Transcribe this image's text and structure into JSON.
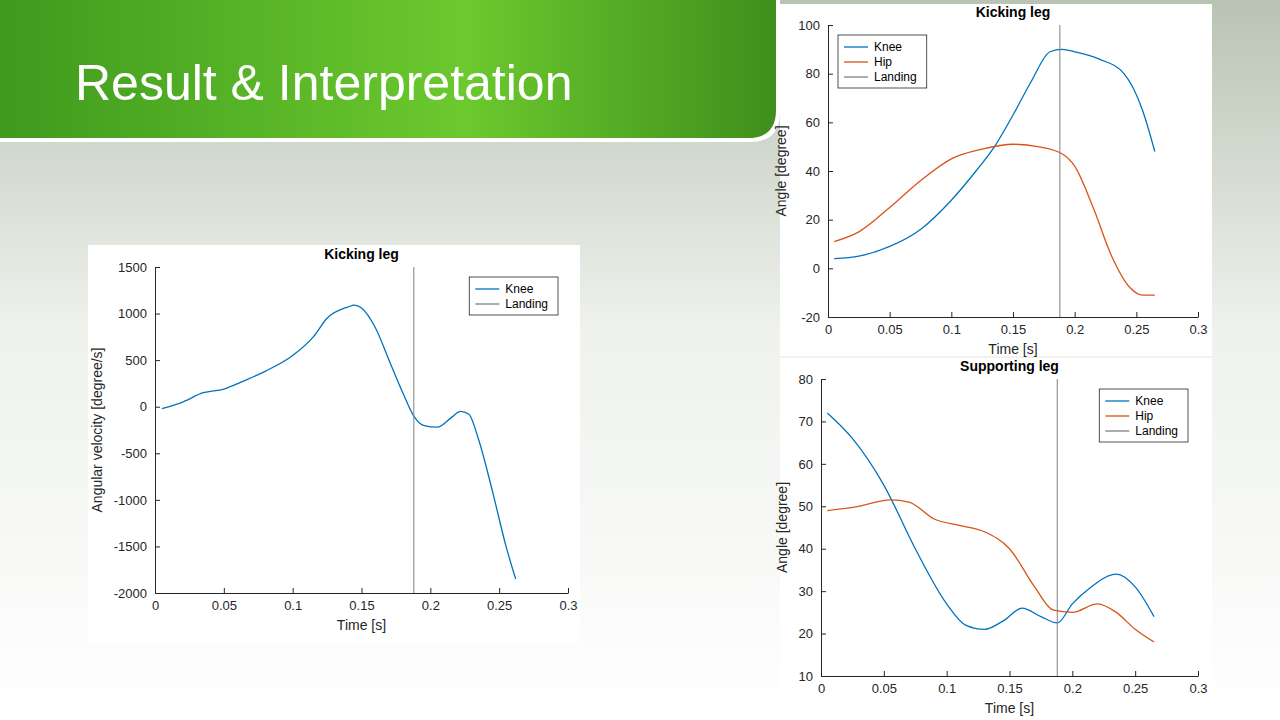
{
  "slide": {
    "title": "Result & Interpretation"
  },
  "chart_data": [
    {
      "type": "line",
      "title": "Kicking leg",
      "x_label": "Time [s]",
      "y_label": "Angular velocity [degree/s]",
      "xlim": [
        0,
        0.3
      ],
      "xticks": [
        0,
        0.05,
        0.1,
        0.15,
        0.2,
        0.25,
        0.3
      ],
      "ylim": [
        -2000,
        1500
      ],
      "yticks": [
        -2000,
        -1500,
        -1000,
        -500,
        0,
        500,
        1000,
        1500
      ],
      "grid": false,
      "legend": "northeast",
      "series": [
        {
          "name": "Knee",
          "color": "#0072bd",
          "x": [
            0.005,
            0.02,
            0.035,
            0.05,
            0.065,
            0.08,
            0.1,
            0.115,
            0.125,
            0.14,
            0.145,
            0.15,
            0.16,
            0.17,
            0.18,
            0.188,
            0.195,
            0.205,
            0.215,
            0.222,
            0.228,
            0.235,
            0.245,
            0.255,
            0.262
          ],
          "values": [
            -20,
            50,
            150,
            190,
            280,
            380,
            550,
            750,
            950,
            1070,
            1090,
            1060,
            850,
            500,
            150,
            -100,
            -200,
            -220,
            -120,
            -50,
            -80,
            -350,
            -900,
            -1500,
            -1850
          ]
        },
        {
          "name": "Landing",
          "color": "#808080",
          "x": [
            0.188,
            0.188
          ],
          "values": [
            -2000,
            1500
          ]
        }
      ]
    },
    {
      "type": "line",
      "title": "Kicking leg",
      "x_label": "Time [s]",
      "y_label": "Angle [degree]",
      "xlim": [
        0,
        0.3
      ],
      "xticks": [
        0,
        0.05,
        0.1,
        0.15,
        0.2,
        0.25,
        0.3
      ],
      "ylim": [
        -20,
        100
      ],
      "yticks": [
        -20,
        0,
        20,
        40,
        60,
        80,
        100
      ],
      "grid": false,
      "legend": "northwest",
      "series": [
        {
          "name": "Knee",
          "color": "#0072bd",
          "x": [
            0.005,
            0.025,
            0.05,
            0.075,
            0.1,
            0.12,
            0.135,
            0.15,
            0.165,
            0.18,
            0.19,
            0.2,
            0.22,
            0.24,
            0.255,
            0.265
          ],
          "values": [
            4,
            5,
            9,
            16,
            28,
            40,
            50,
            63,
            77,
            89,
            90,
            89,
            86,
            80,
            65,
            48
          ]
        },
        {
          "name": "Hip",
          "color": "#d95319",
          "x": [
            0.005,
            0.025,
            0.05,
            0.075,
            0.1,
            0.125,
            0.15,
            0.17,
            0.19,
            0.2,
            0.215,
            0.23,
            0.245,
            0.255,
            0.265
          ],
          "values": [
            11,
            15,
            25,
            36,
            45,
            49,
            51,
            50,
            47,
            42,
            25,
            5,
            -8,
            -11,
            -11
          ]
        },
        {
          "name": "Landing",
          "color": "#808080",
          "x": [
            0.188,
            0.188
          ],
          "values": [
            -20,
            100
          ]
        }
      ]
    },
    {
      "type": "line",
      "title": "Supporting leg",
      "x_label": "Time [s]",
      "y_label": "Angle [degree]",
      "xlim": [
        0,
        0.3
      ],
      "xticks": [
        0,
        0.05,
        0.1,
        0.15,
        0.2,
        0.25,
        0.3
      ],
      "ylim": [
        10,
        80
      ],
      "yticks": [
        10,
        20,
        30,
        40,
        50,
        60,
        70,
        80
      ],
      "grid": false,
      "legend": "northeast",
      "series": [
        {
          "name": "Knee",
          "color": "#0072bd",
          "x": [
            0.005,
            0.025,
            0.05,
            0.075,
            0.1,
            0.115,
            0.13,
            0.145,
            0.16,
            0.175,
            0.188,
            0.2,
            0.215,
            0.235,
            0.25,
            0.265
          ],
          "values": [
            72,
            66,
            55,
            40,
            27,
            22,
            21,
            23,
            26,
            24,
            22.5,
            27,
            31,
            34,
            31,
            24
          ]
        },
        {
          "name": "Hip",
          "color": "#d95319",
          "x": [
            0.005,
            0.03,
            0.055,
            0.07,
            0.09,
            0.11,
            0.13,
            0.15,
            0.17,
            0.185,
            0.2,
            0.22,
            0.235,
            0.25,
            0.265
          ],
          "values": [
            49,
            50,
            51.5,
            51,
            47,
            45.5,
            44,
            40,
            31,
            25.5,
            25,
            27,
            25,
            21,
            18
          ]
        },
        {
          "name": "Landing",
          "color": "#808080",
          "x": [
            0.188,
            0.188
          ],
          "values": [
            10,
            80
          ]
        }
      ]
    }
  ]
}
